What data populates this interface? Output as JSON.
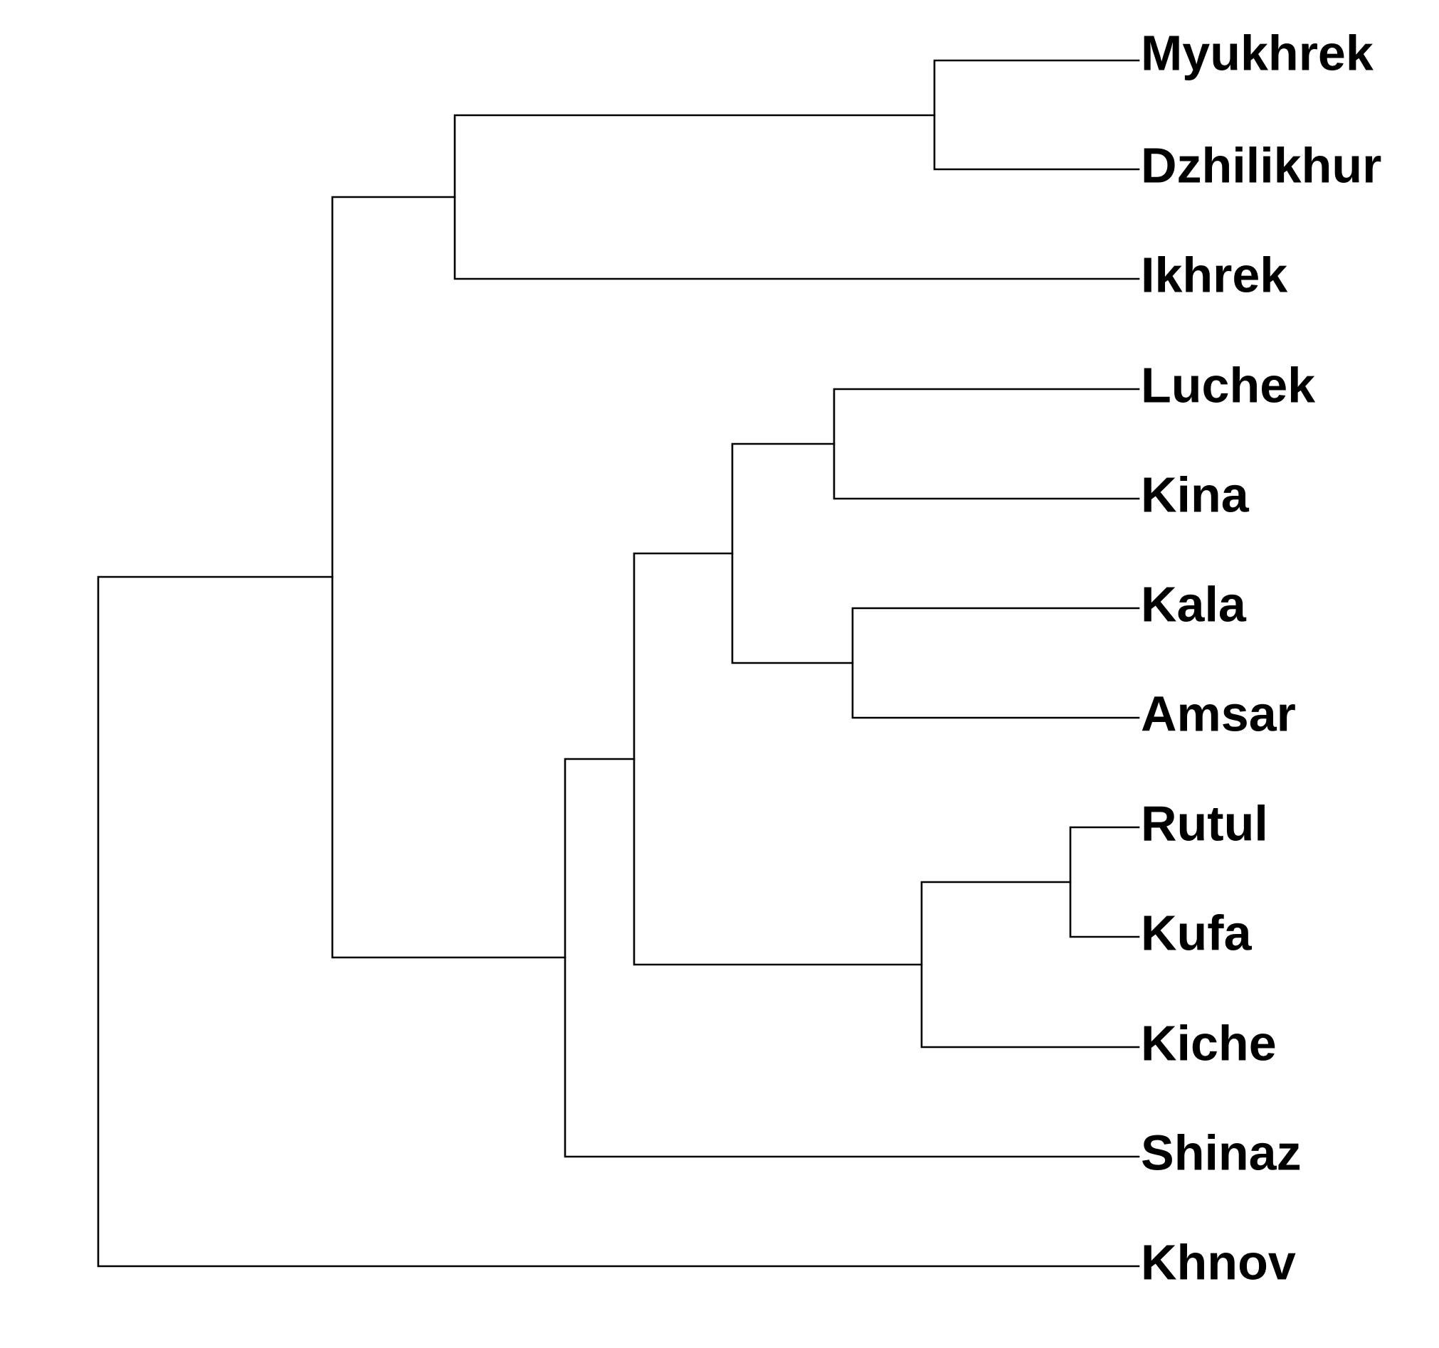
{
  "dendrogram": {
    "leaves": [
      "Myukhrek",
      "Dzhilikhur",
      "Ikhrek",
      "Luchek",
      "Kina",
      "Kala",
      "Amsar",
      "Rutul",
      "Kufa",
      "Kiche",
      "Shinaz",
      "Khnov"
    ],
    "colors": {
      "branch": "#000000",
      "label": "#000000",
      "background": "#ffffff"
    }
  }
}
